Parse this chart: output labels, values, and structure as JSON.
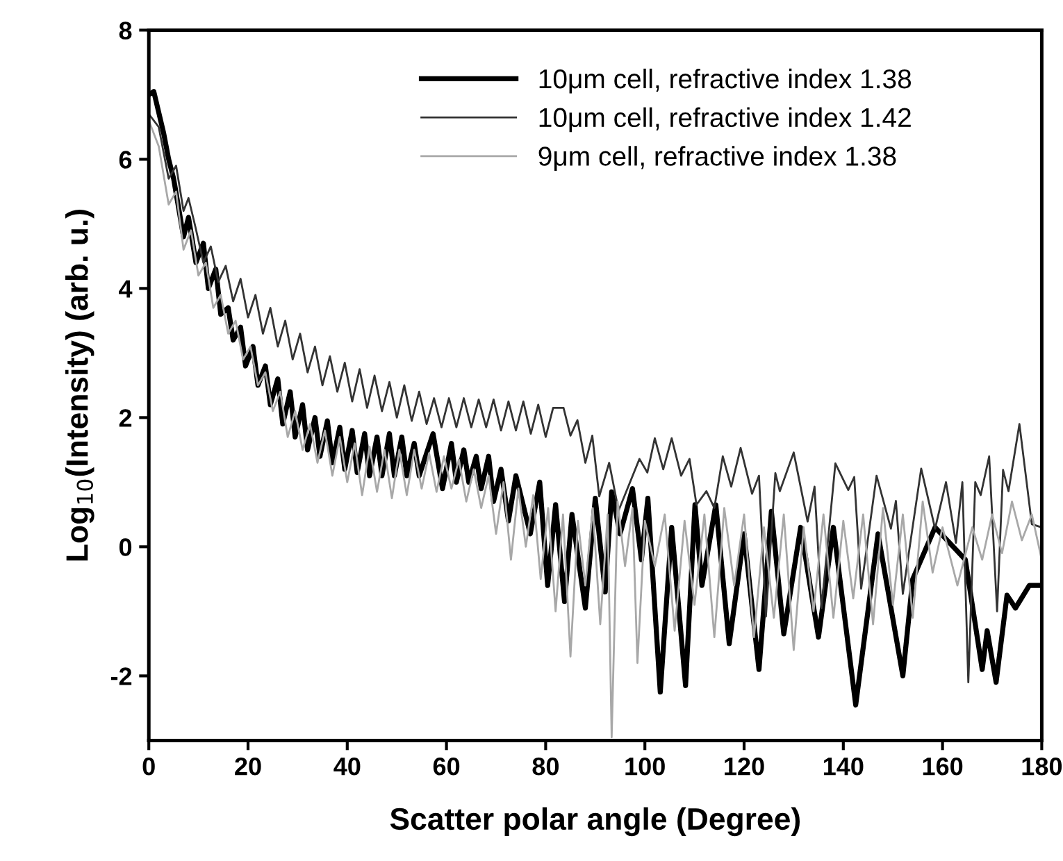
{
  "chart_data": {
    "type": "line",
    "xlabel": "Scatter polar angle (Degree)",
    "ylabel": "Log$_{10}$(Intensity) (arb. u.)",
    "xlim": [
      0,
      180
    ],
    "xticks": [
      0,
      20,
      40,
      60,
      80,
      100,
      120,
      140,
      160,
      180
    ],
    "ylim": [
      -3,
      8
    ],
    "yticks": [
      -2,
      0,
      2,
      4,
      6,
      8
    ],
    "grid": false,
    "legend": "top",
    "marker": "none",
    "line_style": "solid",
    "series": [
      {
        "name": "10μm cell, refractive index 1.38",
        "color": "#000000",
        "x": [
          0,
          1,
          3,
          4,
          5,
          7,
          8,
          9.5,
          11,
          12,
          13.5,
          14.5,
          16,
          17,
          18.5,
          19.5,
          21,
          22,
          23.5,
          24.5,
          26,
          27,
          28.5,
          29.5,
          31,
          32,
          33.5,
          34.5,
          36,
          37,
          38.5,
          39.5,
          41,
          42,
          43.5,
          44.5,
          46,
          47,
          48.5,
          49.5,
          51,
          52,
          53.5,
          54.5,
          57.3,
          59.2,
          61,
          62,
          63.5,
          64.5,
          66,
          67,
          68.5,
          69.5,
          71,
          72.5,
          74,
          76.9,
          78.8,
          80.4,
          82,
          83.8,
          85.3,
          88,
          90,
          92,
          93.3,
          95,
          97.5,
          99.3,
          100.6,
          103.1,
          105.4,
          108.2,
          110.1,
          111.5,
          114.3,
          117,
          120,
          123,
          125.5,
          128,
          131.4,
          135,
          138,
          142.5,
          147,
          152,
          154,
          158.5,
          164.6,
          168,
          169,
          170.8,
          173,
          174.7,
          177.5,
          180
        ],
        "values": [
          7.0,
          7.05,
          6.4,
          6.0,
          5.7,
          4.8,
          5.1,
          4.4,
          4.7,
          4.0,
          4.3,
          3.6,
          3.7,
          3.2,
          3.4,
          2.8,
          3.1,
          2.5,
          2.8,
          2.2,
          2.6,
          1.9,
          2.4,
          1.7,
          2.2,
          1.5,
          2.0,
          1.4,
          1.95,
          1.3,
          1.85,
          1.2,
          1.8,
          1.15,
          1.75,
          1.1,
          1.7,
          1.1,
          1.75,
          1.1,
          1.7,
          1.1,
          1.6,
          1.1,
          1.75,
          0.9,
          1.6,
          1.0,
          1.5,
          1.0,
          1.4,
          0.9,
          1.4,
          0.7,
          1.2,
          0.4,
          1.1,
          0.2,
          1.0,
          -0.6,
          0.65,
          -0.85,
          0.5,
          -0.95,
          0.75,
          -0.7,
          0.85,
          0.2,
          0.9,
          -0.2,
          0.75,
          -2.25,
          0.3,
          -2.15,
          0.65,
          -0.6,
          0.65,
          -1.5,
          0.2,
          -1.9,
          0.55,
          -1.35,
          0.3,
          -1.4,
          0.3,
          -2.45,
          0.2,
          -2.0,
          -0.5,
          0.3,
          -0.2,
          -1.9,
          -1.3,
          -2.1,
          -0.75,
          -0.95,
          -0.6,
          -0.6
        ]
      },
      {
        "name": "10μm cell, refractive index 1.42",
        "color": "#333333",
        "x": [
          0,
          2,
          4,
          5.5,
          7,
          8,
          9.4,
          11,
          12.5,
          14,
          15.5,
          17,
          18.5,
          20,
          21.5,
          23,
          24.5,
          26,
          27.5,
          29,
          30.5,
          32,
          33.5,
          35,
          36.5,
          38,
          39.5,
          41,
          42.5,
          44,
          45.5,
          47,
          48.5,
          50,
          51.5,
          53,
          54.5,
          56,
          57.5,
          59,
          60.5,
          62,
          63.5,
          65,
          66.5,
          68,
          69.5,
          71,
          72.5,
          74,
          75.5,
          77,
          78.5,
          80,
          81.5,
          83.6,
          85,
          86.4,
          88,
          89.4,
          90.8,
          92.8,
          94.7,
          98.9,
          100.5,
          102,
          103.7,
          105.4,
          107.3,
          109,
          110.4,
          112.4,
          114,
          115.7,
          117.4,
          119.3,
          121.6,
          123,
          124.4,
          126.3,
          127.2,
          130,
          132.8,
          134.2,
          135.6,
          138.4,
          141,
          142.2,
          143.6,
          146.7,
          149.6,
          150.6,
          152,
          155.7,
          158.5,
          160.7,
          162.7,
          164,
          165.2,
          166.6,
          167.7,
          169.4,
          171,
          172.2,
          173.3,
          175.5,
          178,
          180
        ],
        "values": [
          6.7,
          6.5,
          5.7,
          5.9,
          5.2,
          5.4,
          4.95,
          4.4,
          4.65,
          4.1,
          4.35,
          3.8,
          4.15,
          3.55,
          3.9,
          3.3,
          3.7,
          3.1,
          3.5,
          2.9,
          3.3,
          2.7,
          3.1,
          2.5,
          2.95,
          2.4,
          2.85,
          2.25,
          2.75,
          2.15,
          2.65,
          2.1,
          2.55,
          2.0,
          2.5,
          1.95,
          2.4,
          1.9,
          2.3,
          1.85,
          2.3,
          1.85,
          2.3,
          1.85,
          2.28,
          1.85,
          2.28,
          1.8,
          2.25,
          1.8,
          2.25,
          1.75,
          2.2,
          1.7,
          2.15,
          2.15,
          1.72,
          1.96,
          1.3,
          1.72,
          0.78,
          1.3,
          0.56,
          1.36,
          1.15,
          1.68,
          1.2,
          1.68,
          1.1,
          1.36,
          0.65,
          0.86,
          0.6,
          1.4,
          0.93,
          1.53,
          0.82,
          1.1,
          -1.08,
          1.14,
          0.86,
          1.46,
          0.39,
          0.93,
          -0.95,
          1.29,
          0.88,
          1.08,
          -0.65,
          1.1,
          0.28,
          0.71,
          -0.73,
          1.21,
          0.28,
          1.0,
          0.06,
          1.0,
          -2.1,
          1.0,
          0.8,
          1.4,
          -1.0,
          1.19,
          0.86,
          1.9,
          0.35,
          0.3
        ]
      },
      {
        "name": "9μm cell, refractive index 1.38",
        "color": "#a8a8a8",
        "x": [
          0,
          2,
          4,
          5.5,
          7,
          8.5,
          10,
          11.5,
          13,
          14.5,
          16,
          17.5,
          19,
          20.5,
          22,
          23.5,
          25,
          26.5,
          28,
          29.5,
          31,
          32.5,
          34,
          35.5,
          37,
          38.5,
          40,
          41.5,
          43,
          44.5,
          46,
          47.5,
          49,
          50.5,
          52,
          53.5,
          55,
          56.5,
          58,
          59.5,
          61,
          62.5,
          64,
          65.5,
          67,
          68.5,
          70,
          71.5,
          73,
          74.5,
          76,
          77.5,
          79,
          80.5,
          82,
          83.5,
          85,
          86.5,
          88,
          89.5,
          91,
          92.5,
          93.3,
          94.5,
          96,
          97.5,
          98.5,
          100,
          102,
          104,
          106,
          108,
          110,
          112,
          114,
          116,
          118,
          120,
          122,
          124,
          126,
          128,
          130,
          132,
          134,
          136,
          138,
          140,
          142,
          144,
          146,
          148,
          150,
          152,
          154,
          156,
          158,
          160,
          163,
          166,
          168,
          170,
          172,
          174,
          176,
          178,
          180
        ],
        "values": [
          6.6,
          6.2,
          5.3,
          5.5,
          4.6,
          4.9,
          4.2,
          4.4,
          3.7,
          3.9,
          3.3,
          3.5,
          2.9,
          3.1,
          2.5,
          2.7,
          2.1,
          2.4,
          1.7,
          2.1,
          1.5,
          1.9,
          1.3,
          1.8,
          1.1,
          1.7,
          1.0,
          1.6,
          0.8,
          1.55,
          0.85,
          1.5,
          0.75,
          1.5,
          0.8,
          1.5,
          0.9,
          1.45,
          0.85,
          1.4,
          0.9,
          1.35,
          0.7,
          1.2,
          0.6,
          1.1,
          0.2,
          1.0,
          -0.2,
          0.9,
          0.0,
          0.8,
          -0.5,
          0.6,
          -1.0,
          0.5,
          -1.7,
          0.4,
          -0.6,
          0.6,
          -1.2,
          0.5,
          -2.95,
          0.7,
          -0.3,
          0.6,
          -1.8,
          0.4,
          -0.3,
          0.5,
          -1.3,
          0.4,
          -0.9,
          0.5,
          -1.4,
          0.6,
          -0.6,
          0.5,
          -1.4,
          0.3,
          -1.1,
          0.5,
          -1.6,
          0.3,
          -1.0,
          0.5,
          -1.1,
          0.4,
          -0.8,
          0.5,
          -1.2,
          0.6,
          -0.9,
          0.5,
          -1.1,
          0.7,
          -0.4,
          0.3,
          -0.6,
          0.3,
          -0.2,
          0.5,
          -0.1,
          0.7,
          0.1,
          0.5,
          -0.2
        ]
      }
    ]
  }
}
